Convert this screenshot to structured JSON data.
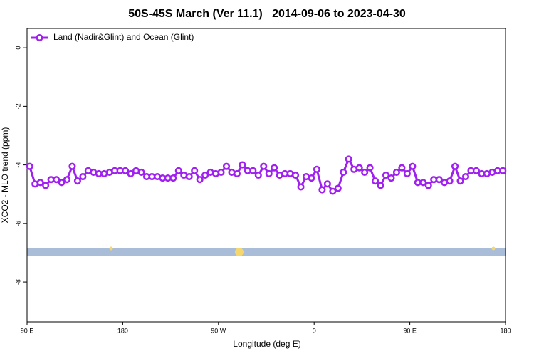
{
  "chart_data": {
    "type": "line",
    "title": "50S-45S March (Ver 11.1)   2014-09-06 to 2023-04-30",
    "xlabel": "Longitude (deg E)",
    "ylabel": "XCO2 - MLO trend (ppm)",
    "legend": "upper left",
    "xlim": [
      90,
      540
    ],
    "ylim": [
      -9.36,
      0.66
    ],
    "xticks": [
      {
        "value": 90,
        "label": "90 E"
      },
      {
        "value": 180,
        "label": "180"
      },
      {
        "value": 270,
        "label": "90 W"
      },
      {
        "value": 360,
        "label": "0"
      },
      {
        "value": 450,
        "label": "90 E"
      },
      {
        "value": 540,
        "label": "180"
      }
    ],
    "yticks": [
      0,
      -2,
      -4,
      -6,
      -8
    ],
    "x": [
      92.5,
      97.5,
      102.5,
      107.5,
      112.5,
      117.5,
      122.5,
      127.5,
      132.5,
      137.5,
      142.5,
      147.5,
      152.5,
      157.5,
      162.5,
      167.5,
      172.5,
      177.5,
      182.5,
      187.5,
      192.5,
      197.5,
      202.5,
      207.5,
      212.5,
      217.5,
      222.5,
      227.5,
      232.5,
      237.5,
      242.5,
      247.5,
      252.5,
      257.5,
      262.5,
      267.5,
      272.5,
      277.5,
      282.5,
      287.5,
      292.5,
      297.5,
      302.5,
      307.5,
      312.5,
      317.5,
      322.5,
      327.5,
      332.5,
      337.5,
      342.5,
      347.5,
      352.5,
      357.5,
      362.5,
      367.5,
      372.5,
      377.5,
      382.5,
      387.5,
      392.5,
      397.5,
      402.5,
      407.5,
      412.5,
      417.5,
      422.5,
      427.5,
      432.5,
      437.5,
      442.5,
      447.5,
      452.5,
      457.5,
      462.5,
      467.5,
      472.5,
      477.5,
      482.5,
      487.5,
      492.5,
      497.5,
      502.5,
      507.5,
      512.5,
      517.5,
      522.5,
      527.5,
      532.5,
      537.5
    ],
    "series": [
      {
        "name": "Land (Nadir&Glint) and Ocean (Glint)",
        "color": "#a020f0",
        "values": [
          -4.05,
          -4.65,
          -4.6,
          -4.7,
          -4.5,
          -4.5,
          -4.6,
          -4.5,
          -4.05,
          -4.55,
          -4.4,
          -4.2,
          -4.25,
          -4.3,
          -4.3,
          -4.25,
          -4.2,
          -4.2,
          -4.2,
          -4.3,
          -4.2,
          -4.25,
          -4.4,
          -4.4,
          -4.4,
          -4.45,
          -4.45,
          -4.45,
          -4.2,
          -4.35,
          -4.4,
          -4.2,
          -4.5,
          -4.35,
          -4.25,
          -4.3,
          -4.25,
          -4.05,
          -4.25,
          -4.3,
          -4.0,
          -4.2,
          -4.2,
          -4.35,
          -4.05,
          -4.3,
          -4.1,
          -4.35,
          -4.3,
          -4.3,
          -4.35,
          -4.75,
          -4.4,
          -4.45,
          -4.15,
          -4.85,
          -4.65,
          -4.9,
          -4.8,
          -4.25,
          -3.8,
          -4.15,
          -4.1,
          -4.25,
          -4.1,
          -4.55,
          -4.7,
          -4.35,
          -4.45,
          -4.25,
          -4.1,
          -4.3,
          -4.05,
          -4.6,
          -4.6,
          -4.7,
          -4.5,
          -4.5,
          -4.6,
          -4.55,
          -4.05,
          -4.55,
          -4.4,
          -4.2,
          -4.2,
          -4.3,
          -4.3,
          -4.25,
          -4.2,
          -4.2
        ]
      }
    ]
  }
}
